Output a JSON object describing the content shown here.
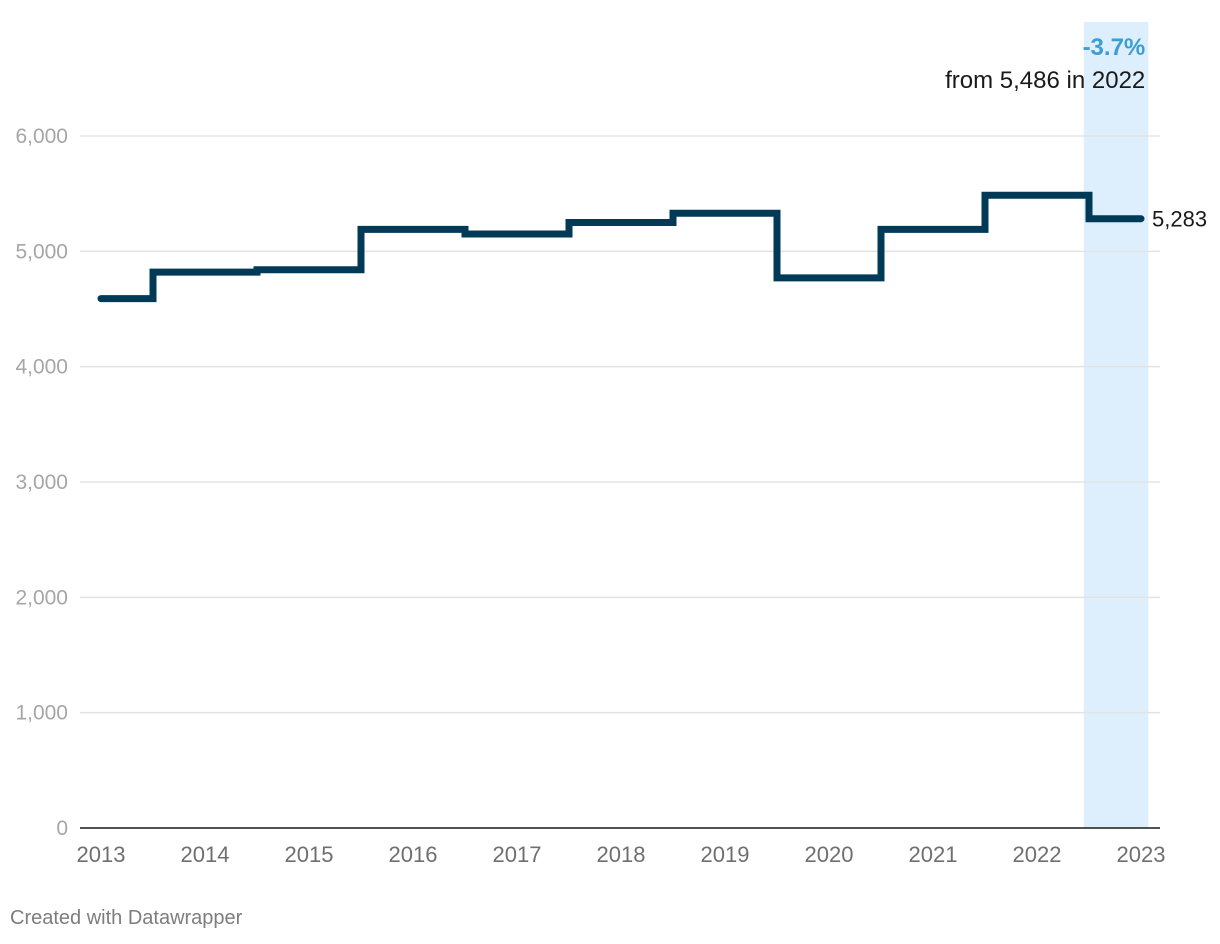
{
  "chart_data": {
    "type": "line",
    "style": "step",
    "x": [
      "2013",
      "2014",
      "2015",
      "2016",
      "2017",
      "2018",
      "2019",
      "2020",
      "2021",
      "2022",
      "2023"
    ],
    "series": [
      {
        "values": [
          4590,
          4820,
          4840,
          5190,
          5150,
          5250,
          5330,
          4770,
          5190,
          5486,
          5283
        ],
        "color": "#003a57"
      }
    ],
    "ylim": [
      0,
      6000
    ],
    "yticks": [
      0,
      1000,
      2000,
      3000,
      4000,
      5000,
      6000
    ],
    "ytick_labels": [
      "0",
      "1,000",
      "2,000",
      "3,000",
      "4,000",
      "5,000",
      "6,000"
    ],
    "grid": true,
    "highlight": {
      "x": "2023",
      "color": "#ddeffc"
    },
    "annotation": {
      "value": "-3.7%",
      "value_color": "#3d9ed4",
      "text": "from 5,486 in 2022"
    },
    "end_label": "5,283"
  },
  "footer": "Created with Datawrapper"
}
